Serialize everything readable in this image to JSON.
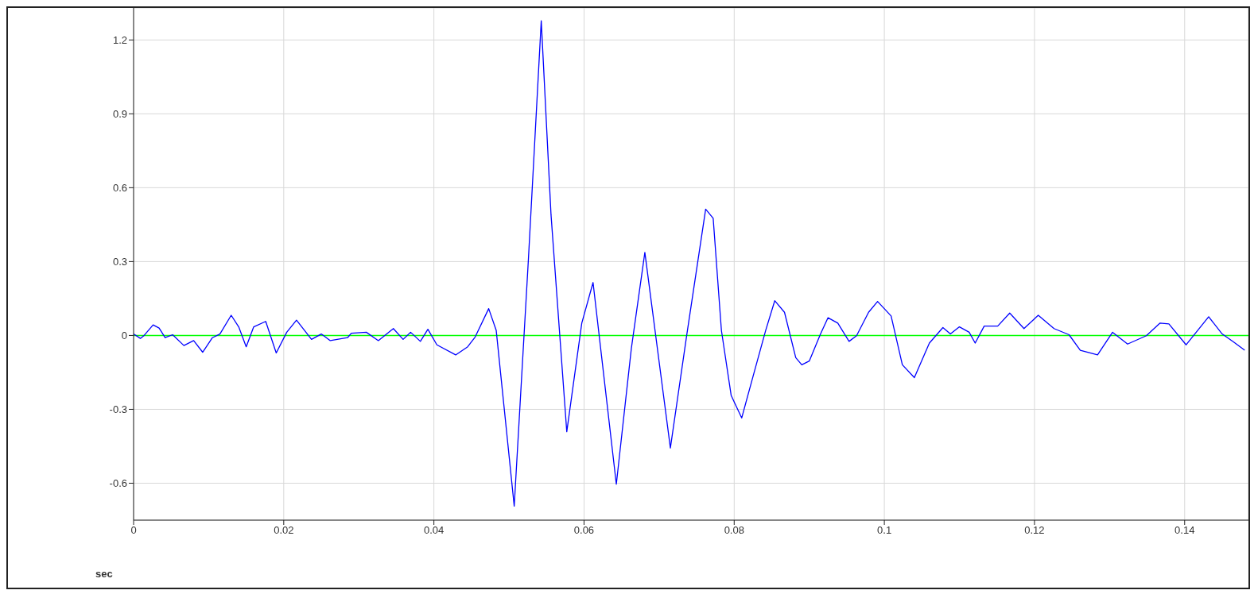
{
  "chart_data": {
    "type": "line",
    "xlabel": "sec",
    "x": [
      0,
      0.0009,
      0.0014,
      0.0026,
      0.0034,
      0.0042,
      0.0052,
      0.0067,
      0.008,
      0.0092,
      0.0105,
      0.0115,
      0.013,
      0.014,
      0.015,
      0.016,
      0.0176,
      0.019,
      0.0204,
      0.0217,
      0.0237,
      0.025,
      0.0262,
      0.0285,
      0.029,
      0.031,
      0.0326,
      0.0346,
      0.0359,
      0.0369,
      0.0382,
      0.0392,
      0.0404,
      0.0429,
      0.0445,
      0.0455,
      0.0473,
      0.0483,
      0.0507,
      0.0526,
      0.0543,
      0.0556,
      0.0577,
      0.0597,
      0.0612,
      0.0643,
      0.0663,
      0.0681,
      0.0715,
      0.0737,
      0.0762,
      0.0772,
      0.0783,
      0.0796,
      0.081,
      0.0826,
      0.0842,
      0.0854,
      0.0867,
      0.0882,
      0.089,
      0.09,
      0.0915,
      0.0925,
      0.0938,
      0.0953,
      0.0963,
      0.0979,
      0.0991,
      0.1009,
      0.1024,
      0.104,
      0.106,
      0.1078,
      0.1088,
      0.11,
      0.1113,
      0.1121,
      0.1133,
      0.1151,
      0.1167,
      0.1186,
      0.1205,
      0.1226,
      0.1246,
      0.1261,
      0.1284,
      0.1304,
      0.1324,
      0.1349,
      0.1367,
      0.1379,
      0.1402,
      0.1432,
      0.145,
      0.1465,
      0.148
    ],
    "series": [
      {
        "color": "#0000ff",
        "values": [
          0.006,
          -0.012,
          0,
          0.043,
          0.03,
          -0.009,
          0.003,
          -0.041,
          -0.021,
          -0.068,
          -0.009,
          0.006,
          0.082,
          0.035,
          -0.046,
          0.035,
          0.057,
          -0.071,
          0.013,
          0.062,
          -0.016,
          0.006,
          -0.021,
          -0.009,
          0.009,
          0.013,
          -0.021,
          0.028,
          -0.016,
          0.013,
          -0.024,
          0.025,
          -0.038,
          -0.079,
          -0.046,
          -0.006,
          0.109,
          0.021,
          -0.693,
          0.315,
          1.278,
          0.491,
          -0.391,
          0.05,
          0.215,
          -0.604,
          -0.053,
          0.337,
          -0.457,
          0.006,
          0.513,
          0.476,
          0.02,
          -0.244,
          -0.335,
          -0.156,
          0.021,
          0.141,
          0.094,
          -0.09,
          -0.119,
          -0.104,
          0.006,
          0.072,
          0.05,
          -0.024,
          -0.001,
          0.094,
          0.138,
          0.079,
          -0.119,
          -0.171,
          -0.031,
          0.032,
          0.006,
          0.035,
          0.013,
          -0.031,
          0.038,
          0.038,
          0.091,
          0.028,
          0.082,
          0.028,
          0.003,
          -0.06,
          -0.079,
          0.013,
          -0.035,
          -0.001,
          0.05,
          0.047,
          -0.038,
          0.076,
          0.006,
          -0.026,
          -0.06
        ]
      }
    ],
    "xlim": [
      0,
      0.1485
    ],
    "xticks": [
      0,
      0.02,
      0.04,
      0.06,
      0.08,
      0.1,
      0.12,
      0.14
    ],
    "ylim": [
      -0.75,
      1.33
    ],
    "yticks": [
      -0.6,
      -0.3,
      0,
      0.3,
      0.6,
      0.9,
      1.2
    ],
    "ref_lines": [
      {
        "axis": "y",
        "value": 0,
        "color": "#00ff00"
      }
    ],
    "grid": true,
    "legend": false,
    "marker": "none",
    "line_style": "solid"
  }
}
